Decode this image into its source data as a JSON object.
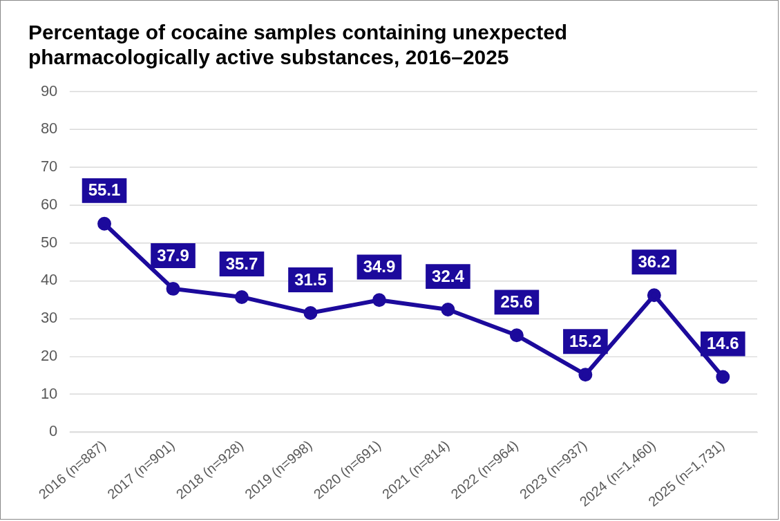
{
  "chart_data": {
    "type": "line",
    "title": "Percentage of cocaine samples containing unexpected pharmacologically active substances, 2016–2025",
    "categories": [
      "2016 (n=887)",
      "2017 (n=901)",
      "2018 (n=928)",
      "2019 (n=998)",
      "2020 (n=691)",
      "2021 (n=814)",
      "2022 (n=964)",
      "2023 (n=937)",
      "2024 (n=1,460)",
      "2025 (n=1,731)"
    ],
    "series": [
      {
        "color": "#1c0a9c",
        "values": [
          55.1,
          37.9,
          35.7,
          31.5,
          34.9,
          32.4,
          25.6,
          15.2,
          36.2,
          14.6
        ]
      }
    ],
    "ylim": [
      0,
      90
    ],
    "yticks": [
      0,
      10,
      20,
      30,
      40,
      50,
      60,
      70,
      80,
      90
    ],
    "grid": "y",
    "legend": false,
    "marker": "circle",
    "line_style": "solid",
    "data_labels": true
  }
}
